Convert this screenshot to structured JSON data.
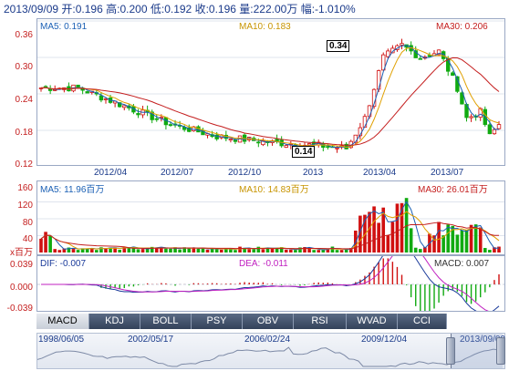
{
  "header": {
    "date": "2013/09/09",
    "open_label": "开:",
    "open": "0.196",
    "high_label": "高:",
    "high": "0.200",
    "low_label": "低:",
    "low": "0.192",
    "close_label": "收:",
    "close": "0.196",
    "vol_label": "量:",
    "vol": "222.00万",
    "amp_label": "幅:",
    "amp": "-1.010%"
  },
  "price": {
    "ma5": "MA5: 0.191",
    "ma10": "MA10: 0.183",
    "ma30": "MA30: 0.206",
    "yticks": [
      "0.36",
      "0.30",
      "0.24",
      "0.18",
      "0.12"
    ],
    "xticks": [
      "2012/04",
      "2012/07",
      "2012/10",
      "2013",
      "2013/04",
      "2013/07"
    ],
    "high_badge": "0.34",
    "low_badge": "0.14",
    "colors": {
      "up": "#d01010",
      "down": "#11aa11",
      "ma5": "#1a5fb4",
      "ma10": "#e0a000",
      "ma30": "#c41e1e"
    }
  },
  "volume": {
    "ma5": "MA5: 11.96百万",
    "ma10": "MA10: 14.83百万",
    "ma30": "MA30: 26.01百万",
    "yticks": [
      "160",
      "120",
      "80",
      "40"
    ],
    "unit": "x百万"
  },
  "macd": {
    "dif": "DIF: -0.007",
    "dea": "DEA: -0.011",
    "macd": "MACD: 0.007",
    "yticks": [
      "0.039",
      "0.000",
      "-0.039"
    ]
  },
  "tabs": [
    "MACD",
    "KDJ",
    "BOLL",
    "PSY",
    "OBV",
    "RSI",
    "WVAD",
    "CCI"
  ],
  "navigator": {
    "dates": [
      "1998/06/05",
      "2002/05/17",
      "2006/02/24",
      "2009/12/04",
      "2013/09/09"
    ]
  },
  "chart_data": [
    {
      "type": "candlestick",
      "title": "",
      "ylim": [
        0.12,
        0.36
      ],
      "series": [
        {
          "name": "MA5",
          "last": 0.191
        },
        {
          "name": "MA10",
          "last": 0.183
        },
        {
          "name": "MA30",
          "last": 0.206
        }
      ],
      "annotations": [
        {
          "label": "0.34"
        },
        {
          "label": "0.14"
        }
      ]
    },
    {
      "type": "bar",
      "ylim": [
        0,
        160
      ],
      "series": [
        {
          "name": "MA5",
          "last": "11.96百万"
        },
        {
          "name": "MA10",
          "last": "14.83百万"
        },
        {
          "name": "MA30",
          "last": "26.01百万"
        }
      ]
    },
    {
      "type": "line",
      "ylim": [
        -0.039,
        0.039
      ],
      "series": [
        {
          "name": "DIF",
          "last": -0.007
        },
        {
          "name": "DEA",
          "last": -0.011
        },
        {
          "name": "MACD",
          "last": 0.007
        }
      ]
    }
  ]
}
